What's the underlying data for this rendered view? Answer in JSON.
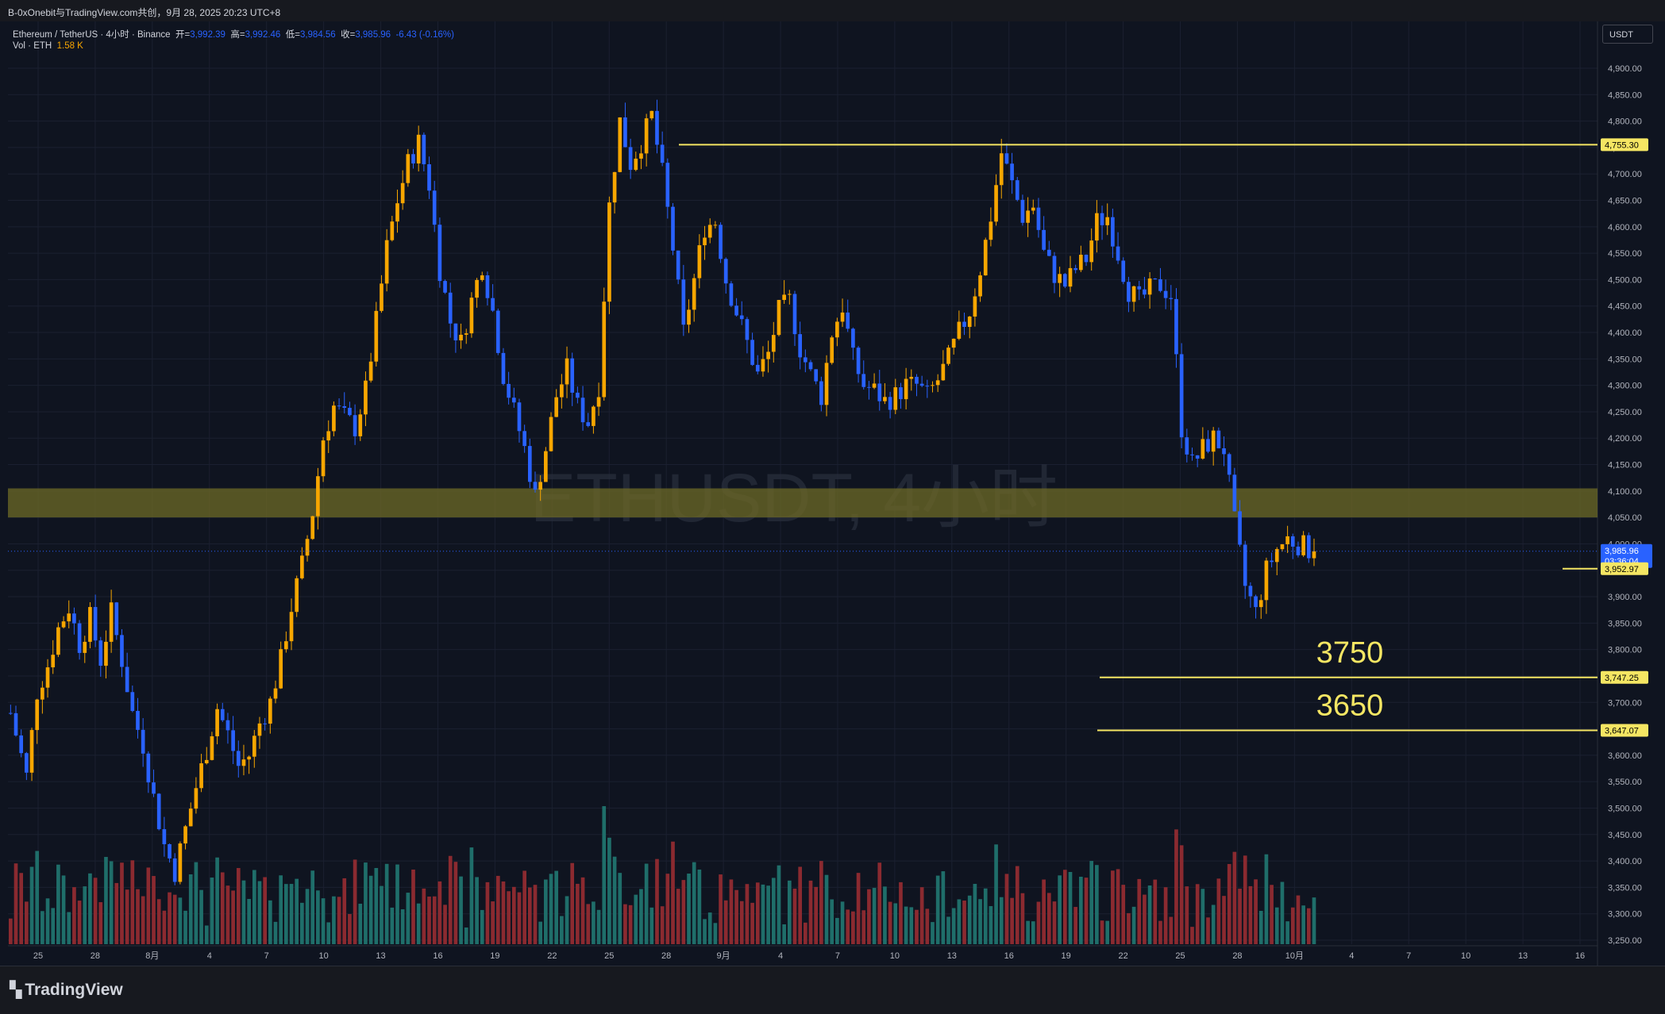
{
  "header": {
    "caption": "B-0xOnebit与TradingView.com共创，9月 28, 2025 20:23 UTC+8"
  },
  "legend": {
    "symbol": "Ethereum / TetherUS · 4小时 · Binance",
    "open_label": "开=",
    "open": "3,992.39",
    "high_label": "高=",
    "high": "3,992.46",
    "low_label": "低=",
    "low": "3,984.56",
    "close_label": "收=",
    "close": "3,985.96",
    "change": "-6.43 (-0.16%)",
    "vol_label": "Vol · ETH",
    "vol_value": "1.58 K"
  },
  "watermark": "ETHUSDT, 4小时",
  "currency": "USDT",
  "logo_text": "TradingView",
  "colors": {
    "background": "#0f1420",
    "up_candle": "#f7a600",
    "down_candle": "#2962ff",
    "up_volume": "#1f6e6a",
    "down_volume": "#8b2a30",
    "level_line": "#f5e663",
    "zone": "#6e6a25",
    "grid": "#1b2030"
  },
  "chart_data": {
    "type": "candlestick",
    "y_axis": {
      "min": 3250,
      "max": 4900,
      "step": 50,
      "tick_labels": [
        "3,250.00",
        "3,300.00",
        "3,350.00",
        "3,400.00",
        "3,450.00",
        "3,500.00",
        "3,550.00",
        "3,600.00",
        "3,650.00",
        "3,700.00",
        "3,750.00",
        "3,800.00",
        "3,850.00",
        "3,900.00",
        "3,950.00",
        "4,000.00",
        "4,050.00",
        "4,100.00",
        "4,150.00",
        "4,200.00",
        "4,250.00",
        "4,300.00",
        "4,350.00",
        "4,400.00",
        "4,450.00",
        "4,500.00",
        "4,550.00",
        "4,600.00",
        "4,650.00",
        "4,700.00",
        "4,750.00",
        "4,800.00",
        "4,850.00",
        "4,900.00"
      ]
    },
    "x_axis": {
      "tick_labels": [
        "25",
        "28",
        "8月",
        "4",
        "7",
        "10",
        "13",
        "16",
        "19",
        "22",
        "25",
        "28",
        "9月",
        "4",
        "7",
        "10",
        "13",
        "16",
        "19",
        "22",
        "25",
        "28",
        "10月",
        "4",
        "7",
        "10",
        "13",
        "16"
      ]
    },
    "price_path": [
      [
        0,
        3680
      ],
      [
        3,
        3560
      ],
      [
        5,
        3720
      ],
      [
        7,
        3770
      ],
      [
        9,
        3840
      ],
      [
        11,
        3880
      ],
      [
        13,
        3810
      ],
      [
        15,
        3860
      ],
      [
        17,
        3780
      ],
      [
        19,
        3870
      ],
      [
        21,
        3780
      ],
      [
        23,
        3680
      ],
      [
        25,
        3620
      ],
      [
        27,
        3520
      ],
      [
        29,
        3430
      ],
      [
        31,
        3380
      ],
      [
        33,
        3460
      ],
      [
        35,
        3540
      ],
      [
        37,
        3610
      ],
      [
        39,
        3690
      ],
      [
        41,
        3640
      ],
      [
        43,
        3580
      ],
      [
        45,
        3600
      ],
      [
        47,
        3660
      ],
      [
        49,
        3700
      ],
      [
        51,
        3780
      ],
      [
        53,
        3880
      ],
      [
        55,
        3960
      ],
      [
        57,
        4060
      ],
      [
        59,
        4200
      ],
      [
        61,
        4260
      ],
      [
        63,
        4240
      ],
      [
        65,
        4220
      ],
      [
        67,
        4290
      ],
      [
        69,
        4420
      ],
      [
        71,
        4560
      ],
      [
        73,
        4650
      ],
      [
        75,
        4720
      ],
      [
        77,
        4760
      ],
      [
        79,
        4680
      ],
      [
        81,
        4520
      ],
      [
        83,
        4420
      ],
      [
        85,
        4380
      ],
      [
        87,
        4460
      ],
      [
        89,
        4530
      ],
      [
        91,
        4440
      ],
      [
        93,
        4320
      ],
      [
        95,
        4250
      ],
      [
        97,
        4180
      ],
      [
        99,
        4090
      ],
      [
        101,
        4180
      ],
      [
        103,
        4280
      ],
      [
        105,
        4330
      ],
      [
        107,
        4260
      ],
      [
        109,
        4230
      ],
      [
        111,
        4300
      ],
      [
        113,
        4640
      ],
      [
        115,
        4800
      ],
      [
        117,
        4720
      ],
      [
        119,
        4760
      ],
      [
        121,
        4810
      ],
      [
        123,
        4700
      ],
      [
        125,
        4560
      ],
      [
        127,
        4400
      ],
      [
        129,
        4500
      ],
      [
        131,
        4600
      ],
      [
        133,
        4610
      ],
      [
        135,
        4500
      ],
      [
        137,
        4440
      ],
      [
        139,
        4380
      ],
      [
        141,
        4320
      ],
      [
        143,
        4360
      ],
      [
        145,
        4440
      ],
      [
        147,
        4460
      ],
      [
        149,
        4370
      ],
      [
        151,
        4320
      ],
      [
        153,
        4280
      ],
      [
        155,
        4400
      ],
      [
        157,
        4450
      ],
      [
        159,
        4350
      ],
      [
        161,
        4300
      ],
      [
        163,
        4290
      ],
      [
        165,
        4270
      ],
      [
        167,
        4280
      ],
      [
        169,
        4300
      ],
      [
        171,
        4300
      ],
      [
        173,
        4280
      ],
      [
        175,
        4310
      ],
      [
        177,
        4350
      ],
      [
        179,
        4400
      ],
      [
        181,
        4440
      ],
      [
        183,
        4520
      ],
      [
        185,
        4620
      ],
      [
        187,
        4740
      ],
      [
        189,
        4680
      ],
      [
        191,
        4620
      ],
      [
        193,
        4640
      ],
      [
        195,
        4550
      ],
      [
        197,
        4510
      ],
      [
        199,
        4490
      ],
      [
        201,
        4520
      ],
      [
        203,
        4540
      ],
      [
        205,
        4610
      ],
      [
        207,
        4620
      ],
      [
        209,
        4550
      ],
      [
        211,
        4480
      ],
      [
        213,
        4460
      ],
      [
        215,
        4480
      ],
      [
        217,
        4490
      ],
      [
        219,
        4470
      ],
      [
        221,
        4220
      ],
      [
        223,
        4150
      ],
      [
        225,
        4180
      ],
      [
        227,
        4200
      ],
      [
        229,
        4180
      ],
      [
        231,
        4040
      ],
      [
        233,
        3920
      ],
      [
        235,
        3870
      ],
      [
        237,
        3950
      ],
      [
        239,
        3990
      ],
      [
        241,
        4010
      ],
      [
        243,
        4000
      ],
      [
        245,
        3990
      ],
      [
        246,
        3986
      ]
    ],
    "candles_on_axis": 246,
    "axis_slots": 300,
    "last_price": {
      "label": "3,985.96",
      "countdown": "03:36:04",
      "value": 3985.96
    },
    "price_levels": [
      {
        "value": 4755.3,
        "label": "4,755.30"
      },
      {
        "value": 3952.97,
        "label": "3,952.97"
      },
      {
        "value": 3747.25,
        "label": "3,747.25",
        "annotation": "3750"
      },
      {
        "value": 3647.07,
        "label": "3,647.07",
        "annotation": "3650"
      }
    ],
    "zone": {
      "from": 4050,
      "to": 4105
    }
  }
}
